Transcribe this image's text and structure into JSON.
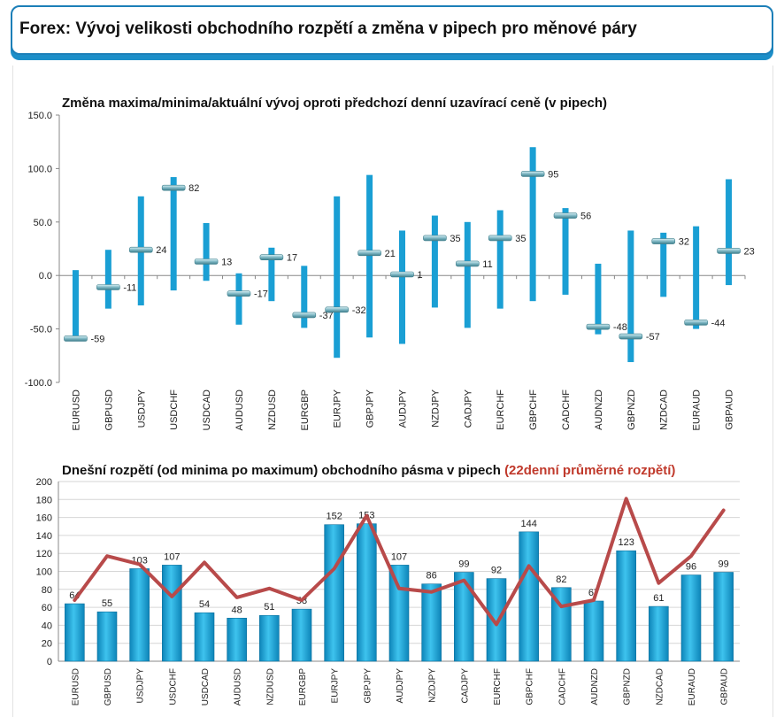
{
  "header": {
    "title": "Forex: Vývoj velikosti obchodního rozpětí a změna v pipech pro měnové páry"
  },
  "colors": {
    "accent": "#1c8ec8",
    "bar": "#1a9fd4",
    "line": "#b84a4a"
  },
  "chart_data": [
    {
      "type": "range-bar",
      "title": "Změna maxima/minima/aktuální vývoj oproti předchozí denní uzavírací ceně (v pipech)",
      "xlabel": "",
      "ylabel": "",
      "ylim": [
        -100,
        150
      ],
      "yticks": [
        "150.0",
        "100.0",
        "50.0",
        "0.0",
        "-50.0",
        "-100.0"
      ],
      "categories": [
        "EURUSD",
        "GBPUSD",
        "USDJPY",
        "USDCHF",
        "USDCAD",
        "AUDUSD",
        "NZDUSD",
        "EURGBP",
        "EURJPY",
        "GBPJPY",
        "AUDJPY",
        "NZDJPY",
        "CADJPY",
        "EURCHF",
        "GBPCHF",
        "CADCHF",
        "AUDNZD",
        "GBPNZD",
        "NZDCAD",
        "EURAUD",
        "GBPAUD"
      ],
      "high": [
        5,
        24,
        74,
        92,
        49,
        2,
        26,
        9,
        74,
        94,
        42,
        56,
        50,
        61,
        120,
        63,
        11,
        42,
        40,
        46,
        90
      ],
      "low": [
        -60,
        -31,
        -28,
        -14,
        -5,
        -46,
        -24,
        -49,
        -77,
        -58,
        -64,
        -30,
        -49,
        -31,
        -24,
        -18,
        -55,
        -81,
        -20,
        -50,
        -9
      ],
      "current": [
        -59,
        -11,
        24,
        82,
        13,
        -17,
        17,
        -37,
        -32,
        21,
        1,
        35,
        11,
        35,
        95,
        56,
        -48,
        -57,
        32,
        -44,
        23
      ],
      "labels": [
        "-59",
        "-11",
        "24",
        "82",
        "13",
        "-17",
        "17",
        "-37",
        "-32",
        "21",
        "1",
        "35",
        "11",
        "35",
        "95",
        "56",
        "-48",
        "-57",
        "32",
        "-44",
        "23"
      ],
      "grid": false
    },
    {
      "type": "bar+line",
      "title": "Dnešní rozpětí (od minima po maximum) obchodního pásma v pipech",
      "title_highlight": "(22denní průměrné rozpětí)",
      "ylim": [
        0,
        200
      ],
      "yticks": [
        "200",
        "180",
        "160",
        "140",
        "120",
        "100",
        "80",
        "60",
        "40",
        "20",
        "0"
      ],
      "categories": [
        "EURUSD",
        "GBPUSD",
        "USDJPY",
        "USDCHF",
        "USDCAD",
        "AUDUSD",
        "NZDUSD",
        "EURGBP",
        "EURJPY",
        "GBPJPY",
        "AUDJPY",
        "NZDJPY",
        "CADJPY",
        "EURCHF",
        "GBPCHF",
        "CADCHF",
        "AUDNZD",
        "GBPNZD",
        "NZDCAD",
        "EURAUD",
        "GBPAUD"
      ],
      "values": [
        64,
        55,
        103,
        107,
        54,
        48,
        51,
        58,
        152,
        153,
        107,
        86,
        99,
        92,
        144,
        82,
        67,
        123,
        61,
        96,
        99
      ],
      "labels": [
        "64",
        "55",
        "103",
        "107",
        "54",
        "48",
        "51",
        "58",
        "152",
        "153",
        "107",
        "86",
        "99",
        "92",
        "144",
        "82",
        "67",
        "123",
        "61",
        "96",
        "99"
      ],
      "avg": [
        68,
        117,
        108,
        72,
        110,
        71,
        81,
        68,
        103,
        162,
        81,
        77,
        90,
        41,
        106,
        61,
        68,
        181,
        87,
        117,
        168
      ],
      "grid": true
    }
  ]
}
